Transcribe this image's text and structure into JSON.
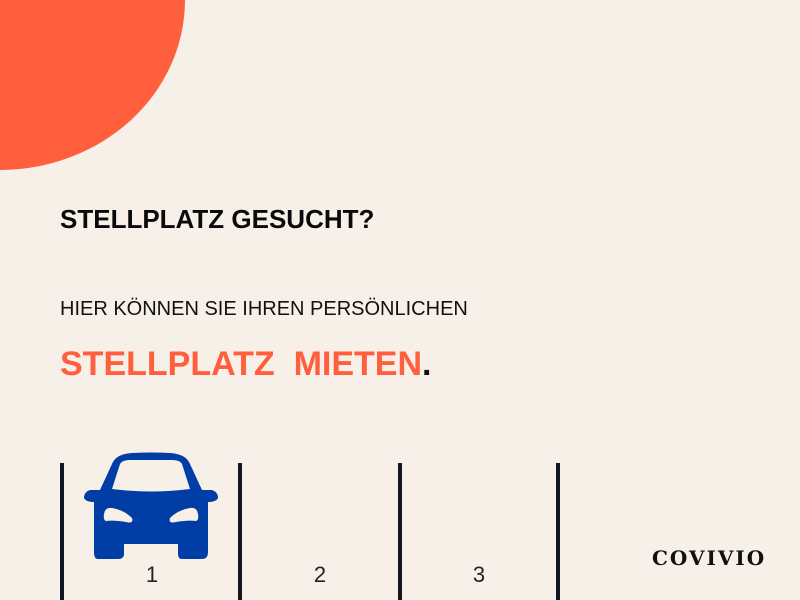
{
  "colors": {
    "background": "#f7f0e9",
    "accent": "#ff5f3d",
    "car": "#003da5",
    "text": "#0a0a0a"
  },
  "heading": "STELLPLATZ GESUCHT?",
  "subtitle": "HIER KÖNNEN SIE IHREN PERSÖNLICHEN",
  "highlight": "STELLPLATZ  MIETEN",
  "highlight_end": ".",
  "parking_spots": [
    {
      "label": "1",
      "occupied": true
    },
    {
      "label": "2",
      "occupied": false
    },
    {
      "label": "3",
      "occupied": false
    }
  ],
  "logo": "COVIVIO",
  "icons": {
    "car": "car-icon"
  }
}
